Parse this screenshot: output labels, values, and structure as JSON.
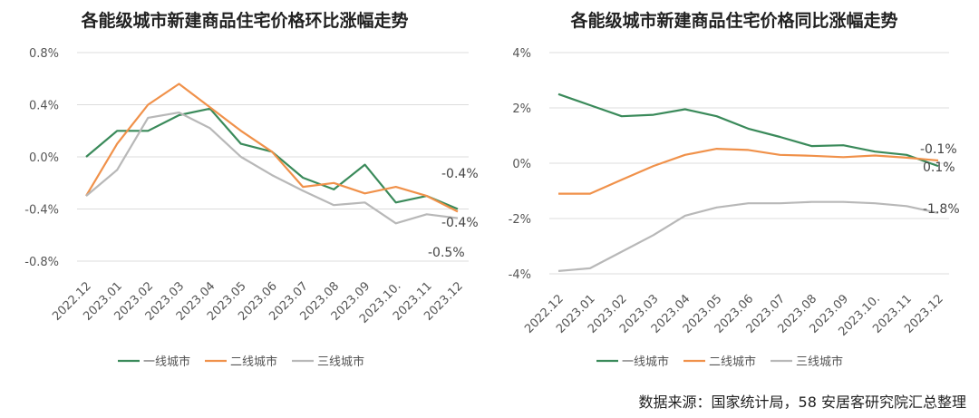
{
  "source_note": "数据来源：国家统计局，58 安居客研究院汇总整理",
  "chart_data": [
    {
      "type": "line",
      "title": "各能级城市新建商品住宅价格环比涨幅走势",
      "categories": [
        "2022.12",
        "2023.01",
        "2023.02",
        "2023.03",
        "2023.04",
        "2023.05",
        "2023.06",
        "2023.07",
        "2023.08",
        "2023.09",
        "2023.10.",
        "2023.11",
        "2023.12"
      ],
      "ylim": [
        -0.8,
        0.8
      ],
      "yticks": [
        -0.8,
        -0.4,
        0.0,
        0.4,
        0.8
      ],
      "ytick_labels": [
        "-0.8%",
        "-0.4%",
        "0.0%",
        "0.4%",
        "0.8%"
      ],
      "grid": true,
      "legend": "bottom",
      "series": [
        {
          "name": "一线城市",
          "color": "#3a8a5a",
          "values": [
            0.0,
            0.2,
            0.2,
            0.32,
            0.37,
            0.1,
            0.04,
            -0.16,
            -0.25,
            -0.06,
            -0.35,
            -0.3,
            -0.4
          ]
        },
        {
          "name": "二线城市",
          "color": "#f0914a",
          "values": [
            -0.3,
            0.1,
            0.4,
            0.56,
            0.38,
            0.2,
            0.04,
            -0.23,
            -0.2,
            -0.28,
            -0.23,
            -0.3,
            -0.42
          ]
        },
        {
          "name": "三线城市",
          "color": "#b8b8b8",
          "values": [
            -0.3,
            -0.1,
            0.3,
            0.34,
            0.22,
            0.0,
            -0.14,
            -0.26,
            -0.37,
            -0.35,
            -0.51,
            -0.44,
            -0.47
          ]
        }
      ],
      "end_labels": [
        "-0.4%",
        "-0.4%",
        "-0.5%"
      ]
    },
    {
      "type": "line",
      "title": "各能级城市新建商品住宅价格同比涨幅走势",
      "categories": [
        "2022.12",
        "2023.01",
        "2023.02",
        "2023.03",
        "2023.04",
        "2023.05",
        "2023.06",
        "2023.07",
        "2023.08",
        "2023.09",
        "2023.10.",
        "2023.11",
        "2023.12"
      ],
      "ylim": [
        -4,
        4
      ],
      "yticks": [
        -4,
        -2,
        0,
        2,
        4
      ],
      "ytick_labels": [
        "-4%",
        "-2%",
        "0%",
        "2%",
        "4%"
      ],
      "grid": true,
      "legend": "bottom",
      "series": [
        {
          "name": "一线城市",
          "color": "#3a8a5a",
          "values": [
            2.5,
            2.1,
            1.7,
            1.75,
            1.95,
            1.7,
            1.25,
            0.95,
            0.62,
            0.65,
            0.42,
            0.3,
            -0.1
          ]
        },
        {
          "name": "二线城市",
          "color": "#f0914a",
          "values": [
            -1.1,
            -1.1,
            -0.6,
            -0.1,
            0.3,
            0.52,
            0.48,
            0.3,
            0.27,
            0.22,
            0.28,
            0.2,
            0.1
          ]
        },
        {
          "name": "三线城市",
          "color": "#b8b8b8",
          "values": [
            -3.9,
            -3.8,
            -3.2,
            -2.6,
            -1.9,
            -1.6,
            -1.45,
            -1.45,
            -1.4,
            -1.4,
            -1.45,
            -1.55,
            -1.8
          ]
        }
      ],
      "end_labels": [
        "-0.1%",
        "0.1%",
        "-1.8%"
      ]
    }
  ]
}
